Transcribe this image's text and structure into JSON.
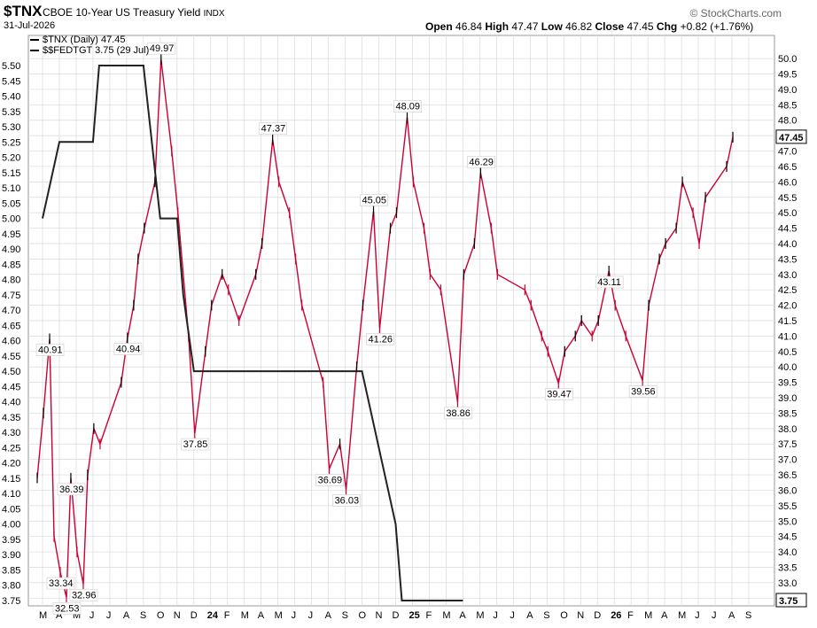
{
  "header": {
    "symbol": "$TNX",
    "description": "CBOE 10-Year US Treasury Yield",
    "exchange": "INDX",
    "date": "31-Jul-2026",
    "watermark": "© StockCharts.com",
    "open_label": "Open",
    "open": "46.84",
    "high_label": "High",
    "high": "47.47",
    "low_label": "Low",
    "low": "46.82",
    "close_label": "Close",
    "close": "47.45",
    "chg_label": "Chg",
    "chg": "+0.82 (+1.76%)"
  },
  "legend": [
    {
      "label": "$TNX (Daily) 47.45",
      "color": "#000000"
    },
    {
      "label": "$$FEDTGT 3.75 (29 Jul)",
      "color": "#000000"
    }
  ],
  "colors": {
    "up": "#000000",
    "down": "#cc0033",
    "fed": "#222222",
    "grid": "#d9d9d9"
  },
  "chart_data": {
    "type": "line",
    "x_ticks": [
      "M",
      "A",
      "M",
      "J",
      "J",
      "A",
      "S",
      "O",
      "N",
      "D",
      "24",
      "F",
      "M",
      "A",
      "M",
      "J",
      "J",
      "A",
      "S",
      "O",
      "N",
      "D",
      "25",
      "F",
      "M",
      "A",
      "M",
      "J",
      "J",
      "A",
      "S",
      "O",
      "N",
      "D",
      "26",
      "F",
      "M",
      "A",
      "M",
      "J",
      "J",
      "A",
      "S"
    ],
    "y_left": {
      "ticks": [
        5.5,
        5.45,
        5.4,
        5.35,
        5.3,
        5.25,
        5.2,
        5.15,
        5.1,
        5.05,
        5.0,
        4.95,
        4.9,
        4.85,
        4.8,
        4.75,
        4.7,
        4.65,
        4.6,
        4.55,
        4.5,
        4.45,
        4.4,
        4.35,
        4.3,
        4.25,
        4.2,
        4.15,
        4.1,
        4.05,
        4.0,
        3.95,
        3.9,
        3.85,
        3.8,
        3.75
      ],
      "range": [
        3.75,
        5.5
      ]
    },
    "y_right": {
      "ticks": [
        50.0,
        49.5,
        49.0,
        48.5,
        48.0,
        47.5,
        47.0,
        46.5,
        46.0,
        45.5,
        45.0,
        44.5,
        44.0,
        43.5,
        43.0,
        42.5,
        42.0,
        41.5,
        41.0,
        40.5,
        40.0,
        39.5,
        39.0,
        38.5,
        38.0,
        37.5,
        37.0,
        36.5,
        36.0,
        35.5,
        35.0,
        34.5,
        34.0,
        33.5,
        33.0,
        32.5
      ],
      "range": [
        32.25,
        50.75
      ]
    },
    "series": [
      {
        "name": "$TNX (Daily)",
        "axis": "right",
        "points": [
          [
            "M",
            36.4
          ],
          [
            "M",
            38.5
          ],
          [
            "M",
            40.91
          ],
          [
            "A",
            34.5
          ],
          [
            "A",
            33.34
          ],
          [
            "A",
            32.53
          ],
          [
            "M",
            36.39
          ],
          [
            "M",
            34.0
          ],
          [
            "M",
            32.96
          ],
          [
            "J",
            36.5
          ],
          [
            "J",
            38.0
          ],
          [
            "J",
            37.5
          ],
          [
            "A",
            39.5
          ],
          [
            "A",
            40.94
          ],
          [
            "A",
            42.0
          ],
          [
            "S",
            43.5
          ],
          [
            "S",
            44.5
          ],
          [
            "O",
            46.0
          ],
          [
            "O",
            49.97
          ],
          [
            "N",
            47.0
          ],
          [
            "N",
            45.0
          ],
          [
            "D",
            41.0
          ],
          [
            "D",
            37.85
          ],
          [
            "24",
            40.5
          ],
          [
            "24",
            42.0
          ],
          [
            "F",
            43.0
          ],
          [
            "F",
            42.5
          ],
          [
            "M",
            41.5
          ],
          [
            "A",
            43.0
          ],
          [
            "A",
            44.0
          ],
          [
            "M",
            47.37
          ],
          [
            "M",
            46.0
          ],
          [
            "J",
            45.0
          ],
          [
            "J",
            43.5
          ],
          [
            "J",
            42.0
          ],
          [
            "A",
            39.5
          ],
          [
            "A",
            36.69
          ],
          [
            "S",
            37.5
          ],
          [
            "S",
            36.03
          ],
          [
            "O",
            40.0
          ],
          [
            "O",
            42.0
          ],
          [
            "N",
            45.05
          ],
          [
            "N",
            41.26
          ],
          [
            "D",
            44.5
          ],
          [
            "D",
            45.0
          ],
          [
            "25",
            48.09
          ],
          [
            "25",
            46.0
          ],
          [
            "F",
            44.5
          ],
          [
            "F",
            43.0
          ],
          [
            "M",
            42.5
          ],
          [
            "A",
            38.86
          ],
          [
            "A",
            43.0
          ],
          [
            "M",
            44.0
          ],
          [
            "M",
            46.29
          ],
          [
            "J",
            44.5
          ],
          [
            "J",
            43.0
          ],
          [
            "A",
            42.5
          ],
          [
            "A",
            42.0
          ],
          [
            "S",
            41.0
          ],
          [
            "S",
            40.5
          ],
          [
            "O",
            39.47
          ],
          [
            "O",
            40.5
          ],
          [
            "N",
            41.0
          ],
          [
            "N",
            41.5
          ],
          [
            "D",
            41.0
          ],
          [
            "D",
            41.5
          ],
          [
            "26",
            43.11
          ],
          [
            "26",
            42.0
          ],
          [
            "F",
            41.0
          ],
          [
            "M",
            39.56
          ],
          [
            "M",
            42.0
          ],
          [
            "A",
            43.5
          ],
          [
            "A",
            44.0
          ],
          [
            "M",
            44.5
          ],
          [
            "M",
            46.0
          ],
          [
            "J",
            45.0
          ],
          [
            "J",
            44.0
          ],
          [
            "J",
            45.5
          ],
          [
            "A",
            46.5
          ],
          [
            "A",
            47.45
          ]
        ],
        "labels": [
          "40.91",
          "33.34",
          "32.53",
          "36.39",
          "32.96",
          "40.94",
          "49.97",
          "37.85",
          "47.37",
          "36.69",
          "36.03",
          "45.05",
          "41.26",
          "48.09",
          "38.86",
          "46.29",
          "39.47",
          "43.11",
          "39.56"
        ]
      },
      {
        "name": "$$FEDTGT",
        "axis": "left",
        "steps": [
          [
            "M",
            5.0
          ],
          [
            "A",
            5.25
          ],
          [
            "J",
            5.25
          ],
          [
            "J",
            5.5
          ],
          [
            "S",
            5.5
          ],
          [
            "O",
            5.0
          ],
          [
            "N",
            5.0
          ],
          [
            "N",
            4.75
          ],
          [
            "D",
            4.5
          ],
          [
            "O",
            4.5
          ],
          [
            "N",
            4.25
          ],
          [
            "D",
            4.0
          ],
          [
            "D",
            3.75
          ],
          [
            "A",
            3.75
          ]
        ]
      }
    ]
  },
  "right_badges": {
    "tnx": "47.45",
    "fed": "3.75"
  }
}
